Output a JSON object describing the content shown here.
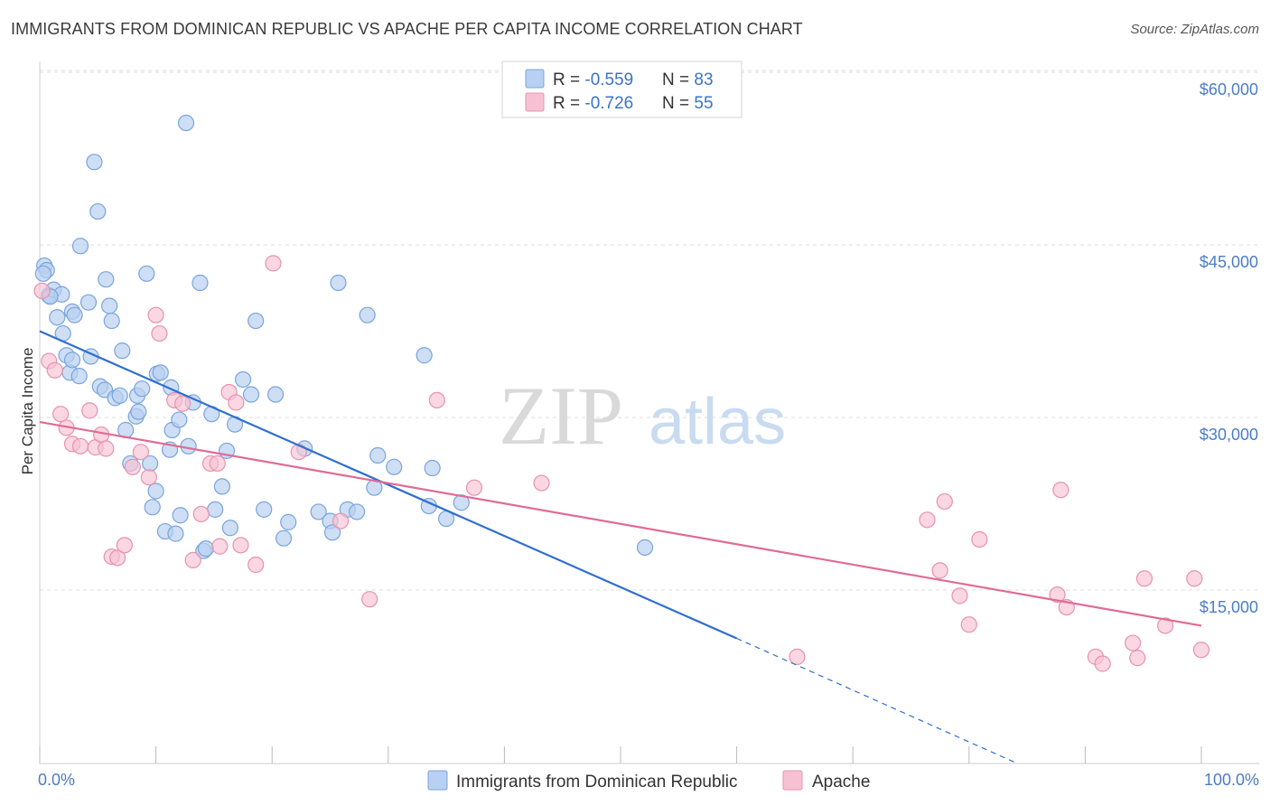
{
  "title": "IMMIGRANTS FROM DOMINICAN REPUBLIC VS APACHE PER CAPITA INCOME CORRELATION CHART",
  "source": "Source: ZipAtlas.com",
  "watermark": {
    "zip": "ZIP",
    "atlas": "atlas"
  },
  "colors": {
    "blue_fill": "#b8d0f1",
    "blue_stroke": "#7aa5dc",
    "blue_line": "#2f6fcf",
    "pink_fill": "#f7c1d3",
    "pink_stroke": "#e892ae",
    "pink_line": "#e06b95",
    "grid": "#dcdcdc",
    "tick_text": "#4a7cc9"
  },
  "legend_top": [
    {
      "r_label": "R = ",
      "r_value": "-0.559",
      "n_label": "N = ",
      "n_value": "83"
    },
    {
      "r_label": "R = ",
      "r_value": "-0.726",
      "n_label": "N = ",
      "n_value": "55"
    }
  ],
  "chart_data": {
    "type": "scatter",
    "title": "IMMIGRANTS FROM DOMINICAN REPUBLIC VS APACHE PER CAPITA INCOME CORRELATION CHART",
    "xlabel": "",
    "ylabel": "Per Capita Income",
    "xlim": [
      0,
      100
    ],
    "ylim": [
      0,
      62000
    ],
    "x_tick_labels": [
      "0.0%",
      "100.0%"
    ],
    "y_ticks": [
      15000,
      30000,
      45000,
      60000
    ],
    "y_tick_labels": [
      "$15,000",
      "$30,000",
      "$45,000",
      "$60,000"
    ],
    "grid": true,
    "legend_position": "top-center",
    "series": [
      {
        "name": "Immigrants from Dominican Republic",
        "color": "#b8d0f1",
        "trend": {
          "x": [
            0,
            60
          ],
          "y": [
            37500,
            10800
          ],
          "dashed_to": [
            84,
            0
          ]
        },
        "points": [
          [
            0.4,
            43200
          ],
          [
            0.6,
            42800
          ],
          [
            0.8,
            40600
          ],
          [
            1.2,
            41100
          ],
          [
            1.5,
            38700
          ],
          [
            1.9,
            40700
          ],
          [
            2.0,
            37300
          ],
          [
            2.3,
            35400
          ],
          [
            2.6,
            33900
          ],
          [
            2.8,
            39200
          ],
          [
            3.0,
            38900
          ],
          [
            3.4,
            33600
          ],
          [
            3.5,
            44900
          ],
          [
            4.2,
            40000
          ],
          [
            4.4,
            35300
          ],
          [
            4.7,
            52200
          ],
          [
            5.0,
            47900
          ],
          [
            5.2,
            32700
          ],
          [
            5.6,
            32400
          ],
          [
            5.7,
            42000
          ],
          [
            6.0,
            39700
          ],
          [
            6.2,
            38400
          ],
          [
            6.5,
            31700
          ],
          [
            6.9,
            31900
          ],
          [
            7.1,
            35800
          ],
          [
            7.4,
            28900
          ],
          [
            7.8,
            26000
          ],
          [
            8.3,
            30100
          ],
          [
            8.4,
            31900
          ],
          [
            8.5,
            30500
          ],
          [
            8.8,
            32500
          ],
          [
            9.2,
            42500
          ],
          [
            9.5,
            26000
          ],
          [
            9.7,
            22200
          ],
          [
            10.0,
            23600
          ],
          [
            10.1,
            33800
          ],
          [
            10.4,
            33900
          ],
          [
            10.8,
            20100
          ],
          [
            11.2,
            27200
          ],
          [
            11.3,
            32600
          ],
          [
            11.4,
            28900
          ],
          [
            11.7,
            19900
          ],
          [
            12.0,
            29800
          ],
          [
            12.1,
            21500
          ],
          [
            12.6,
            55600
          ],
          [
            12.8,
            27500
          ],
          [
            13.2,
            31300
          ],
          [
            13.8,
            41700
          ],
          [
            14.1,
            18400
          ],
          [
            14.3,
            18600
          ],
          [
            14.8,
            30300
          ],
          [
            15.1,
            22000
          ],
          [
            15.7,
            24000
          ],
          [
            16.1,
            27100
          ],
          [
            16.4,
            20400
          ],
          [
            16.8,
            29400
          ],
          [
            17.5,
            33300
          ],
          [
            18.2,
            32000
          ],
          [
            18.6,
            38400
          ],
          [
            19.3,
            22000
          ],
          [
            20.3,
            32000
          ],
          [
            21.0,
            19500
          ],
          [
            21.4,
            20900
          ],
          [
            22.8,
            27300
          ],
          [
            24.0,
            21800
          ],
          [
            25.0,
            21000
          ],
          [
            25.2,
            20000
          ],
          [
            25.7,
            41700
          ],
          [
            26.5,
            22000
          ],
          [
            27.3,
            21800
          ],
          [
            28.2,
            38900
          ],
          [
            28.8,
            23900
          ],
          [
            29.1,
            26700
          ],
          [
            30.5,
            25700
          ],
          [
            33.1,
            35400
          ],
          [
            33.5,
            22300
          ],
          [
            33.8,
            25600
          ],
          [
            35.0,
            21200
          ],
          [
            36.3,
            22600
          ],
          [
            52.1,
            18700
          ],
          [
            0.3,
            42500
          ],
          [
            0.9,
            40500
          ],
          [
            2.8,
            35000
          ]
        ]
      },
      {
        "name": "Apache",
        "color": "#f7c1d3",
        "trend": {
          "x": [
            0,
            100
          ],
          "y": [
            29600,
            11900
          ]
        },
        "points": [
          [
            0.2,
            41000
          ],
          [
            0.8,
            34900
          ],
          [
            1.3,
            34100
          ],
          [
            1.8,
            30300
          ],
          [
            2.3,
            29100
          ],
          [
            2.8,
            27700
          ],
          [
            3.5,
            27500
          ],
          [
            4.3,
            30600
          ],
          [
            4.8,
            27400
          ],
          [
            5.3,
            28500
          ],
          [
            5.7,
            27300
          ],
          [
            6.2,
            17900
          ],
          [
            6.7,
            17800
          ],
          [
            7.3,
            18900
          ],
          [
            8.0,
            25700
          ],
          [
            8.7,
            27000
          ],
          [
            9.4,
            24800
          ],
          [
            10.0,
            38900
          ],
          [
            10.3,
            37300
          ],
          [
            11.6,
            31500
          ],
          [
            12.3,
            31200
          ],
          [
            13.2,
            17600
          ],
          [
            13.9,
            21600
          ],
          [
            14.7,
            26000
          ],
          [
            15.3,
            26000
          ],
          [
            15.5,
            18800
          ],
          [
            16.3,
            32200
          ],
          [
            16.9,
            31300
          ],
          [
            17.3,
            18900
          ],
          [
            18.6,
            17200
          ],
          [
            20.1,
            43400
          ],
          [
            22.3,
            27000
          ],
          [
            25.9,
            21000
          ],
          [
            28.4,
            14200
          ],
          [
            34.2,
            31500
          ],
          [
            37.4,
            23900
          ],
          [
            43.2,
            24300
          ],
          [
            65.2,
            9200
          ],
          [
            76.4,
            21100
          ],
          [
            77.5,
            16700
          ],
          [
            77.9,
            22700
          ],
          [
            79.2,
            14500
          ],
          [
            80.0,
            12000
          ],
          [
            80.9,
            19400
          ],
          [
            87.6,
            14600
          ],
          [
            87.9,
            23700
          ],
          [
            88.4,
            13500
          ],
          [
            90.9,
            9200
          ],
          [
            91.5,
            8600
          ],
          [
            94.1,
            10400
          ],
          [
            94.5,
            9100
          ],
          [
            95.1,
            16000
          ],
          [
            96.9,
            11900
          ],
          [
            99.4,
            16000
          ],
          [
            100.0,
            9800
          ]
        ]
      }
    ]
  }
}
